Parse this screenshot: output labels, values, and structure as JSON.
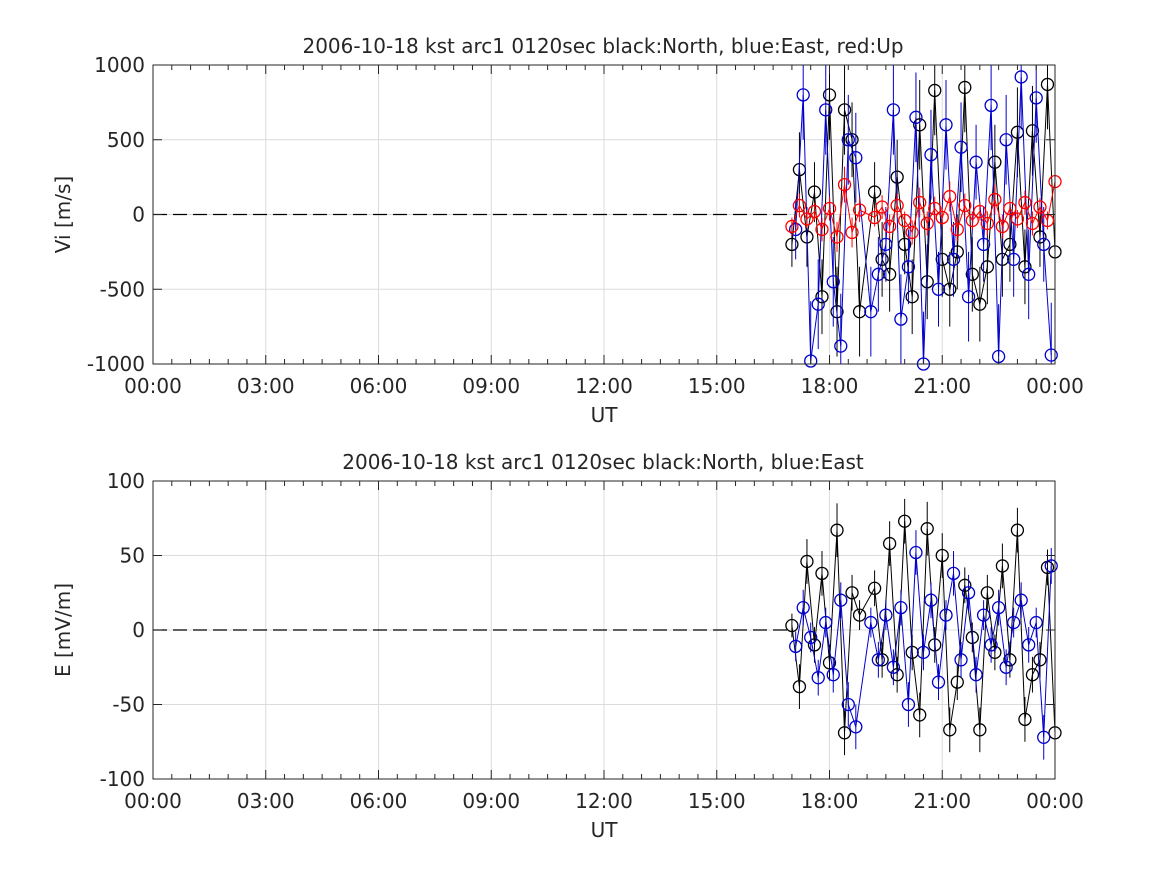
{
  "chart_data": [
    {
      "type": "scatter",
      "title": "2006-10-18 kst arc1 0120sec black:North, blue:East, red:Up",
      "xlabel": "UT",
      "ylabel": "Vi [m/s]",
      "ylim": [
        -1000,
        1000
      ],
      "yticks": [
        "1000",
        "500",
        "0",
        "-500",
        "-1000"
      ],
      "xlim_hours": [
        0,
        24
      ],
      "xticks": [
        "00:00",
        "03:00",
        "06:00",
        "09:00",
        "12:00",
        "15:00",
        "18:00",
        "21:00",
        "00:00"
      ],
      "grid": true,
      "zero_line": "dashed",
      "series": [
        {
          "name": "North",
          "color": "#000000",
          "x": [
            17.0,
            17.2,
            17.4,
            17.6,
            17.8,
            18.0,
            18.2,
            18.4,
            18.6,
            18.8,
            19.2,
            19.4,
            19.6,
            19.8,
            20.0,
            20.2,
            20.4,
            20.6,
            20.8,
            21.0,
            21.2,
            21.4,
            21.6,
            21.8,
            22.0,
            22.2,
            22.4,
            22.6,
            22.8,
            23.0,
            23.2,
            23.4,
            23.6,
            23.8,
            24.0
          ],
          "y": [
            -200,
            300,
            -150,
            150,
            -550,
            800,
            -650,
            700,
            500,
            -650,
            150,
            -300,
            -400,
            250,
            -200,
            -550,
            600,
            -450,
            830,
            -300,
            -500,
            -250,
            850,
            -400,
            -600,
            -350,
            350,
            -300,
            -200,
            550,
            -350,
            560,
            -150,
            870,
            -250
          ],
          "err": [
            150,
            250,
            200,
            200,
            250,
            300,
            300,
            300,
            250,
            300,
            200,
            250,
            250,
            250,
            200,
            250,
            300,
            250,
            300,
            250,
            250,
            250,
            300,
            250,
            250,
            250,
            250,
            250,
            250,
            300,
            250,
            300,
            200,
            300,
            250
          ]
        },
        {
          "name": "East",
          "color": "#0000cc",
          "x": [
            17.1,
            17.3,
            17.5,
            17.7,
            17.9,
            18.1,
            18.3,
            18.5,
            18.7,
            19.1,
            19.3,
            19.5,
            19.7,
            19.9,
            20.1,
            20.3,
            20.5,
            20.7,
            20.9,
            21.1,
            21.3,
            21.5,
            21.7,
            21.9,
            22.1,
            22.3,
            22.5,
            22.7,
            22.9,
            23.1,
            23.3,
            23.5,
            23.7,
            23.9
          ],
          "y": [
            -100,
            800,
            -980,
            -600,
            700,
            -450,
            -880,
            500,
            380,
            -650,
            -400,
            -200,
            700,
            -700,
            -350,
            650,
            -1000,
            400,
            -500,
            600,
            -300,
            450,
            -550,
            350,
            -200,
            730,
            -950,
            500,
            -300,
            920,
            -400,
            780,
            -200,
            -940
          ],
          "err": [
            200,
            300,
            400,
            300,
            300,
            300,
            350,
            300,
            300,
            300,
            250,
            250,
            300,
            300,
            250,
            300,
            350,
            300,
            250,
            300,
            250,
            300,
            300,
            250,
            250,
            300,
            350,
            300,
            250,
            350,
            300,
            300,
            250,
            350
          ]
        },
        {
          "name": "Up",
          "color": "#ff0000",
          "x": [
            17.0,
            17.2,
            17.4,
            17.6,
            17.8,
            18.0,
            18.2,
            18.4,
            18.6,
            18.8,
            19.2,
            19.4,
            19.6,
            19.8,
            20.0,
            20.2,
            20.4,
            20.6,
            20.8,
            21.0,
            21.2,
            21.4,
            21.6,
            21.8,
            22.0,
            22.2,
            22.4,
            22.6,
            22.8,
            23.0,
            23.2,
            23.4,
            23.6,
            23.8,
            24.0
          ],
          "y": [
            -80,
            60,
            -30,
            20,
            -100,
            40,
            -150,
            200,
            -120,
            30,
            -20,
            50,
            -80,
            60,
            -40,
            -120,
            80,
            -60,
            40,
            -20,
            120,
            -100,
            60,
            -40,
            20,
            -60,
            100,
            -80,
            40,
            -30,
            80,
            -60,
            50,
            -40,
            220
          ],
          "err": [
            60,
            80,
            60,
            60,
            80,
            80,
            100,
            120,
            100,
            80,
            60,
            80,
            80,
            80,
            60,
            80,
            100,
            80,
            80,
            60,
            100,
            80,
            80,
            60,
            60,
            80,
            100,
            80,
            60,
            60,
            80,
            80,
            60,
            60,
            100
          ]
        }
      ]
    },
    {
      "type": "scatter",
      "title": "2006-10-18 kst arc1 0120sec black:North, blue:East",
      "xlabel": "UT",
      "ylabel": "E [mV/m]",
      "ylim": [
        -100,
        100
      ],
      "yticks": [
        "100",
        "50",
        "0",
        "-50",
        "-100"
      ],
      "xlim_hours": [
        0,
        24
      ],
      "xticks": [
        "00:00",
        "03:00",
        "06:00",
        "09:00",
        "12:00",
        "15:00",
        "18:00",
        "21:00",
        "00:00"
      ],
      "grid": true,
      "zero_line": "dashed",
      "series": [
        {
          "name": "North",
          "color": "#000000",
          "x": [
            17.0,
            17.2,
            17.4,
            17.6,
            17.8,
            18.0,
            18.2,
            18.4,
            18.6,
            18.8,
            19.2,
            19.4,
            19.6,
            19.8,
            20.0,
            20.2,
            20.4,
            20.6,
            20.8,
            21.0,
            21.2,
            21.4,
            21.6,
            21.8,
            22.0,
            22.2,
            22.4,
            22.6,
            22.8,
            23.0,
            23.2,
            23.4,
            23.6,
            23.8,
            24.0
          ],
          "y": [
            3,
            -38,
            46,
            -10,
            38,
            -22,
            67,
            -69,
            25,
            10,
            28,
            -20,
            58,
            -30,
            73,
            -15,
            -57,
            68,
            -10,
            50,
            -67,
            -35,
            30,
            -5,
            -67,
            25,
            -15,
            43,
            -20,
            67,
            -60,
            -30,
            -20,
            42,
            -69
          ],
          "err": [
            8,
            15,
            15,
            12,
            15,
            12,
            18,
            15,
            12,
            10,
            12,
            12,
            15,
            12,
            15,
            12,
            15,
            18,
            12,
            15,
            15,
            12,
            12,
            10,
            15,
            12,
            12,
            15,
            12,
            15,
            15,
            12,
            12,
            12,
            15
          ]
        },
        {
          "name": "East",
          "color": "#0000cc",
          "x": [
            17.1,
            17.3,
            17.5,
            17.7,
            17.9,
            18.1,
            18.3,
            18.5,
            18.7,
            19.1,
            19.3,
            19.5,
            19.7,
            19.9,
            20.1,
            20.3,
            20.5,
            20.7,
            20.9,
            21.1,
            21.3,
            21.5,
            21.7,
            21.9,
            22.1,
            22.3,
            22.5,
            22.7,
            22.9,
            23.1,
            23.3,
            23.5,
            23.7,
            23.9
          ],
          "y": [
            -11,
            15,
            -5,
            -32,
            5,
            -30,
            20,
            -50,
            -65,
            5,
            -20,
            10,
            -25,
            15,
            -50,
            52,
            -15,
            20,
            -35,
            10,
            38,
            -20,
            25,
            -30,
            10,
            -10,
            15,
            -25,
            5,
            20,
            -10,
            5,
            -72,
            43
          ],
          "err": [
            10,
            12,
            10,
            12,
            10,
            12,
            12,
            15,
            15,
            10,
            12,
            10,
            12,
            12,
            15,
            15,
            12,
            12,
            12,
            10,
            15,
            12,
            12,
            12,
            10,
            12,
            12,
            12,
            10,
            12,
            12,
            10,
            15,
            12
          ]
        }
      ]
    }
  ]
}
